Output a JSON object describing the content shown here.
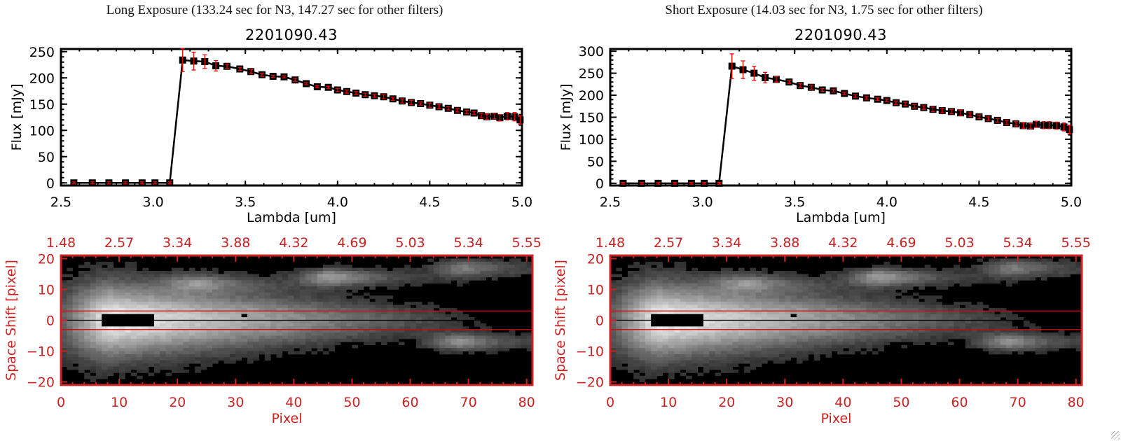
{
  "colors": {
    "axis_black": "#000000",
    "error_red": "#ee0000",
    "image_axis_red": "#cc2222",
    "aperture_red": "#dd0000"
  },
  "panels": [
    {
      "id": "long",
      "title": "Long Exposure (133.24 sec for N3, 147.27 sec for other filters)",
      "chart_data": [
        {
          "type": "line",
          "title": "2201090.43",
          "xlabel": "Lambda [um]",
          "ylabel": "Flux [mJy]",
          "xlim": [
            2.5,
            5.0
          ],
          "ylim": [
            -5,
            255
          ],
          "xticks": [
            "2.5",
            "3.0",
            "3.5",
            "4.0",
            "4.5",
            "5.0"
          ],
          "yticks": [
            "0",
            "50",
            "100",
            "150",
            "200",
            "250"
          ],
          "series": [
            {
              "name": "flux",
              "x": [
                2.57,
                2.67,
                2.76,
                2.85,
                2.94,
                3.01,
                3.09,
                3.16,
                3.22,
                3.28,
                3.34,
                3.4,
                3.47,
                3.53,
                3.59,
                3.65,
                3.71,
                3.77,
                3.83,
                3.89,
                3.95,
                4.0,
                4.05,
                4.1,
                4.15,
                4.2,
                4.25,
                4.3,
                4.35,
                4.4,
                4.45,
                4.5,
                4.55,
                4.6,
                4.65,
                4.7,
                4.74,
                4.78,
                4.81,
                4.85,
                4.88,
                4.92,
                4.96,
                4.99
              ],
              "y": [
                0,
                0,
                0,
                0,
                0,
                0,
                0,
                234,
                232,
                231,
                223,
                222,
                217,
                212,
                206,
                203,
                202,
                196,
                189,
                183,
                182,
                177,
                174,
                171,
                168,
                166,
                164,
                160,
                156,
                153,
                151,
                148,
                145,
                142,
                138,
                135,
                133,
                128,
                126,
                127,
                124,
                127,
                126,
                120
              ],
              "err": [
                2,
                2,
                2,
                2,
                2,
                2,
                2,
                22,
                17,
                13,
                10,
                4,
                3,
                4,
                3,
                2,
                2,
                3,
                2,
                2,
                2,
                3,
                3,
                3,
                3,
                3,
                4,
                3,
                4,
                4,
                3,
                4,
                4,
                3,
                3,
                3,
                3,
                4,
                5,
                5,
                6,
                7,
                8,
                8
              ]
            }
          ]
        },
        {
          "type": "heatmap",
          "xlabel": "Pixel",
          "ylabel": "Space Shift [pixel]",
          "xlim": [
            0,
            81
          ],
          "ylim": [
            -21,
            21
          ],
          "xticks": [
            "0",
            "10",
            "20",
            "30",
            "40",
            "50",
            "60",
            "70",
            "80"
          ],
          "yticks": [
            "-20",
            "-10",
            "0",
            "10",
            "20"
          ],
          "top_axis_label_values": [
            "1.48",
            "2.57",
            "3.34",
            "3.88",
            "4.32",
            "4.69",
            "5.03",
            "5.34",
            "5.55"
          ],
          "aperture_lines": [
            3,
            -3
          ],
          "center_line": 0,
          "saturated_regions": [
            {
              "x": [
                7,
                16
              ],
              "y": [
                -2,
                2
              ]
            },
            {
              "x": [
                31,
                32
              ],
              "y": [
                1,
                2
              ]
            }
          ],
          "sources": [
            {
              "x": 0,
              "y": 0,
              "peak": 0.95,
              "sx": 70,
              "sy": 4
            },
            {
              "x": 24,
              "y": 12,
              "peak": 0.4,
              "sx": 4,
              "sy": 2
            },
            {
              "x": 47,
              "y": 14,
              "peak": 0.55,
              "sx": 4,
              "sy": 2
            },
            {
              "x": 70,
              "y": 17,
              "peak": 0.4,
              "sx": 4,
              "sy": 2
            },
            {
              "x": 69,
              "y": -7,
              "peak": 0.5,
              "sx": 4,
              "sy": 2
            }
          ]
        }
      ]
    },
    {
      "id": "short",
      "title": "Short Exposure (14.03 sec for N3, 1.75 sec for other filters)",
      "chart_data": [
        {
          "type": "line",
          "title": "2201090.43",
          "xlabel": "Lambda [um]",
          "ylabel": "Flux [mJy]",
          "xlim": [
            2.5,
            5.0
          ],
          "ylim": [
            -5,
            305
          ],
          "xticks": [
            "2.5",
            "3.0",
            "3.5",
            "4.0",
            "4.5",
            "5.0"
          ],
          "yticks": [
            "0",
            "50",
            "100",
            "150",
            "200",
            "250",
            "300"
          ],
          "series": [
            {
              "name": "flux",
              "x": [
                2.57,
                2.67,
                2.76,
                2.85,
                2.94,
                3.01,
                3.09,
                3.16,
                3.22,
                3.28,
                3.34,
                3.4,
                3.47,
                3.53,
                3.59,
                3.65,
                3.71,
                3.77,
                3.83,
                3.89,
                3.95,
                4.0,
                4.05,
                4.1,
                4.15,
                4.2,
                4.25,
                4.3,
                4.35,
                4.4,
                4.45,
                4.5,
                4.55,
                4.6,
                4.65,
                4.7,
                4.74,
                4.78,
                4.81,
                4.85,
                4.88,
                4.92,
                4.96,
                4.99
              ],
              "y": [
                0,
                0,
                0,
                0,
                0,
                0,
                0,
                266,
                258,
                250,
                240,
                236,
                230,
                222,
                218,
                212,
                210,
                204,
                198,
                194,
                191,
                188,
                183,
                180,
                175,
                172,
                168,
                165,
                163,
                160,
                156,
                151,
                147,
                143,
                138,
                135,
                131,
                130,
                134,
                132,
                132,
                131,
                128,
                122
              ],
              "err": [
                2,
                2,
                2,
                2,
                2,
                2,
                2,
                28,
                20,
                16,
                12,
                6,
                3,
                4,
                5,
                3,
                3,
                3,
                3,
                3,
                3,
                3,
                4,
                4,
                4,
                4,
                5,
                5,
                5,
                6,
                4,
                4,
                4,
                4,
                5,
                5,
                6,
                6,
                7,
                8,
                8,
                8,
                9,
                10
              ]
            }
          ]
        },
        {
          "type": "heatmap",
          "xlabel": "Pixel",
          "ylabel": "Space Shift [pixel]",
          "xlim": [
            0,
            81
          ],
          "ylim": [
            -21,
            21
          ],
          "xticks": [
            "0",
            "10",
            "20",
            "30",
            "40",
            "50",
            "60",
            "70",
            "80"
          ],
          "yticks": [
            "-20",
            "-10",
            "0",
            "10",
            "20"
          ],
          "top_axis_label_values": [
            "1.48",
            "2.57",
            "3.34",
            "3.88",
            "4.32",
            "4.69",
            "5.03",
            "5.34",
            "5.55"
          ],
          "aperture_lines": [
            3,
            -3
          ],
          "center_line": 0,
          "saturated_regions": [
            {
              "x": [
                7,
                16
              ],
              "y": [
                -2,
                2
              ]
            },
            {
              "x": [
                31,
                32
              ],
              "y": [
                1,
                2
              ]
            }
          ],
          "sources": [
            {
              "x": 0,
              "y": 0,
              "peak": 0.95,
              "sx": 70,
              "sy": 4
            },
            {
              "x": 24,
              "y": 12,
              "peak": 0.4,
              "sx": 4,
              "sy": 2
            },
            {
              "x": 47,
              "y": 14,
              "peak": 0.55,
              "sx": 4,
              "sy": 2
            },
            {
              "x": 70,
              "y": 17,
              "peak": 0.4,
              "sx": 4,
              "sy": 2
            },
            {
              "x": 69,
              "y": -7,
              "peak": 0.5,
              "sx": 4,
              "sy": 2
            }
          ]
        }
      ]
    }
  ]
}
